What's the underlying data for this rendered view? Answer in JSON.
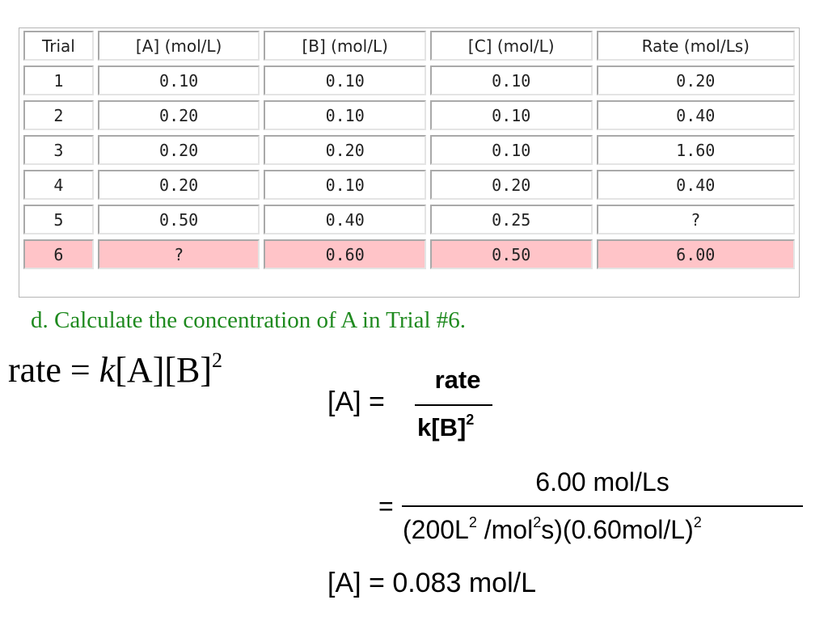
{
  "table": {
    "headers": [
      "Trial",
      "[A] (mol/L)",
      "[B] (mol/L)",
      "[C] (mol/L)",
      "Rate (mol/Ls)"
    ],
    "rows": [
      [
        "1",
        "0.10",
        "0.10",
        "0.10",
        "0.20"
      ],
      [
        "2",
        "0.20",
        "0.10",
        "0.10",
        "0.40"
      ],
      [
        "3",
        "0.20",
        "0.20",
        "0.10",
        "1.60"
      ],
      [
        "4",
        "0.20",
        "0.10",
        "0.20",
        "0.40"
      ],
      [
        "5",
        "0.50",
        "0.40",
        "0.25",
        "?"
      ],
      [
        "6",
        "?",
        "0.60",
        "0.50",
        "6.00"
      ]
    ],
    "highlight_row": "6",
    "highlight_color": "#ffc4c8",
    "unknown_color": "#e00000"
  },
  "question": {
    "text": "d. Calculate the concentration of A in Trial #6.",
    "color": "#1f8a1f"
  },
  "rate_law": {
    "prefix": "rate = ",
    "k": "k",
    "body": "[A][B]",
    "exponent": "2"
  },
  "equation": {
    "lhs": "[A] =",
    "step1_numerator": "rate",
    "step1_denominator": "k[B]",
    "step1_den_exponent": "2",
    "equals": "=",
    "step2_numerator": "6.00 mol/Ls",
    "step2_den_part1": "(200L",
    "step2_den_exp1": "2",
    "step2_den_part2": " /mol",
    "step2_den_exp2": "2",
    "step2_den_part3": "s)(0.60mol/L)",
    "step2_den_exp3": "2",
    "result": "[A] = 0.083 mol/L"
  }
}
